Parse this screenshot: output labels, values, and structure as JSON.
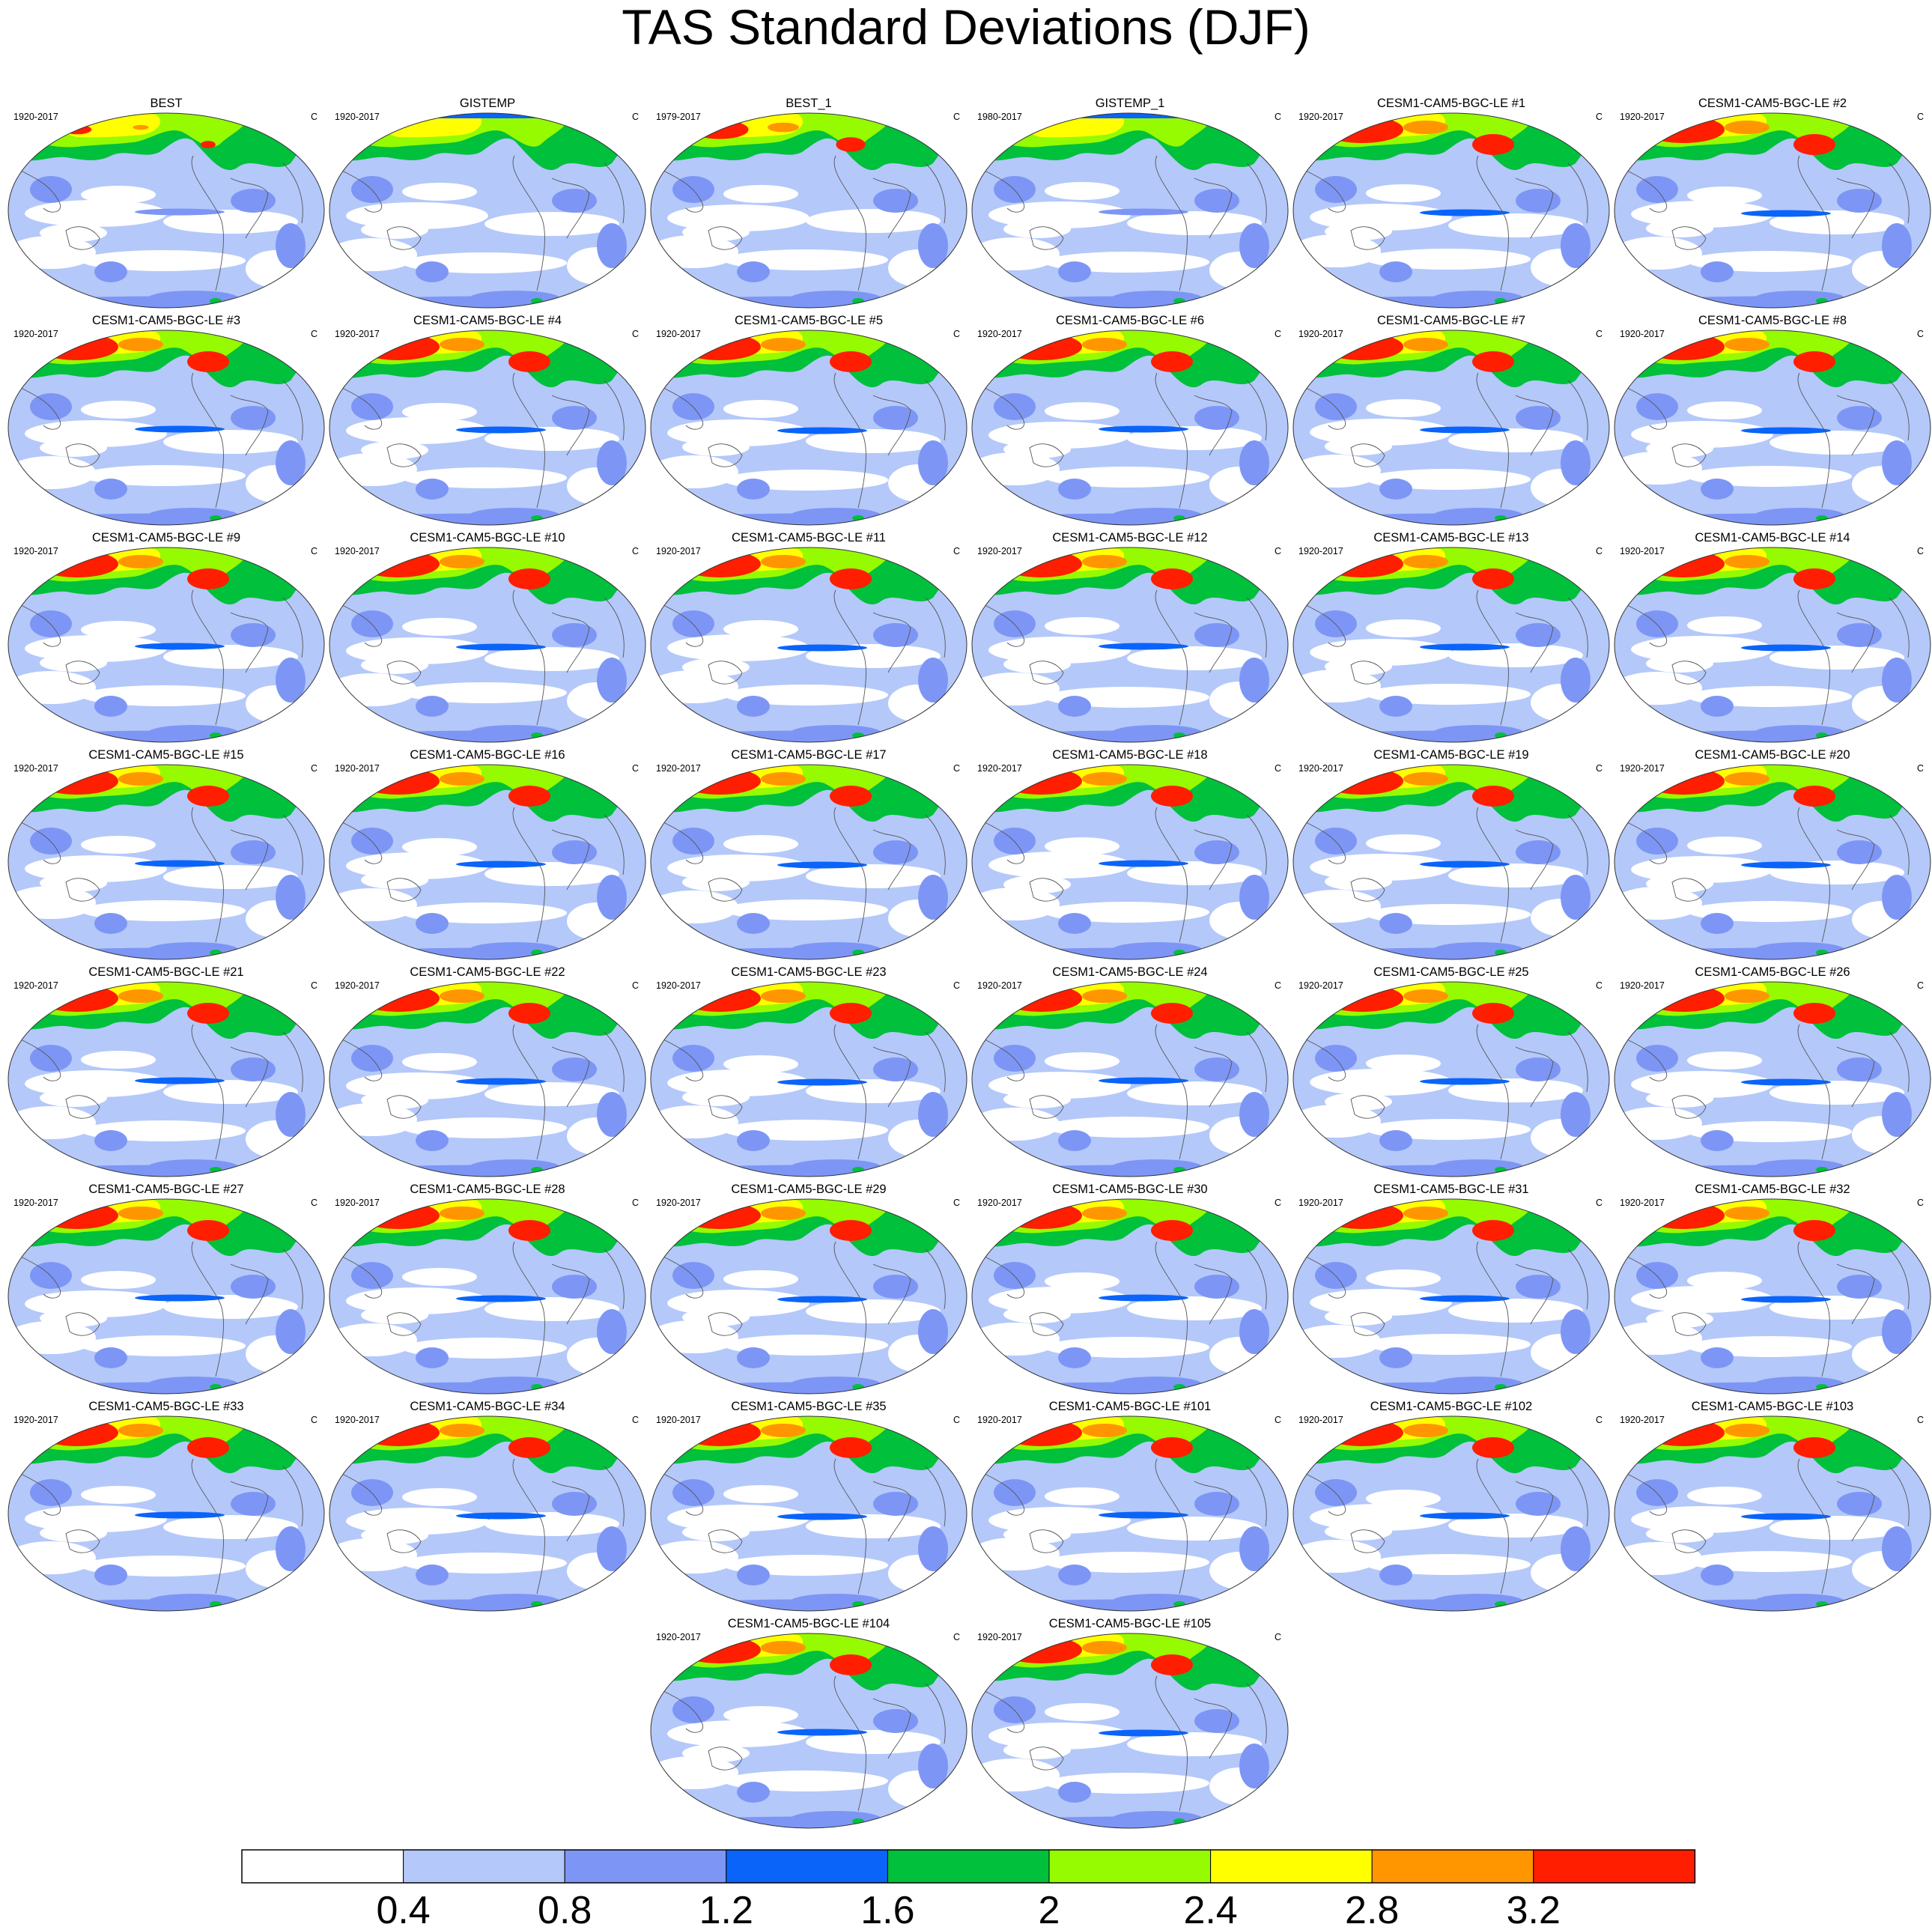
{
  "title": "TAS Standard Deviations (DJF)",
  "chart_data": {
    "type": "heatmap",
    "title": "TAS Standard Deviations (DJF)",
    "variable": "TAS",
    "season": "DJF",
    "units": "C",
    "panels": [
      {
        "name": "BEST",
        "years": "1920-2017",
        "units": "C"
      },
      {
        "name": "GISTEMP",
        "years": "1920-2017",
        "units": "C"
      },
      {
        "name": "BEST_1",
        "years": "1979-2017",
        "units": "C"
      },
      {
        "name": "GISTEMP_1",
        "years": "1980-2017",
        "units": "C"
      },
      {
        "name": "CESM1-CAM5-BGC-LE #1",
        "years": "1920-2017",
        "units": "C"
      },
      {
        "name": "CESM1-CAM5-BGC-LE #2",
        "years": "1920-2017",
        "units": "C"
      },
      {
        "name": "CESM1-CAM5-BGC-LE #3",
        "years": "1920-2017",
        "units": "C"
      },
      {
        "name": "CESM1-CAM5-BGC-LE #4",
        "years": "1920-2017",
        "units": "C"
      },
      {
        "name": "CESM1-CAM5-BGC-LE #5",
        "years": "1920-2017",
        "units": "C"
      },
      {
        "name": "CESM1-CAM5-BGC-LE #6",
        "years": "1920-2017",
        "units": "C"
      },
      {
        "name": "CESM1-CAM5-BGC-LE #7",
        "years": "1920-2017",
        "units": "C"
      },
      {
        "name": "CESM1-CAM5-BGC-LE #8",
        "years": "1920-2017",
        "units": "C"
      },
      {
        "name": "CESM1-CAM5-BGC-LE #9",
        "years": "1920-2017",
        "units": "C"
      },
      {
        "name": "CESM1-CAM5-BGC-LE #10",
        "years": "1920-2017",
        "units": "C"
      },
      {
        "name": "CESM1-CAM5-BGC-LE #11",
        "years": "1920-2017",
        "units": "C"
      },
      {
        "name": "CESM1-CAM5-BGC-LE #12",
        "years": "1920-2017",
        "units": "C"
      },
      {
        "name": "CESM1-CAM5-BGC-LE #13",
        "years": "1920-2017",
        "units": "C"
      },
      {
        "name": "CESM1-CAM5-BGC-LE #14",
        "years": "1920-2017",
        "units": "C"
      },
      {
        "name": "CESM1-CAM5-BGC-LE #15",
        "years": "1920-2017",
        "units": "C"
      },
      {
        "name": "CESM1-CAM5-BGC-LE #16",
        "years": "1920-2017",
        "units": "C"
      },
      {
        "name": "CESM1-CAM5-BGC-LE #17",
        "years": "1920-2017",
        "units": "C"
      },
      {
        "name": "CESM1-CAM5-BGC-LE #18",
        "years": "1920-2017",
        "units": "C"
      },
      {
        "name": "CESM1-CAM5-BGC-LE #19",
        "years": "1920-2017",
        "units": "C"
      },
      {
        "name": "CESM1-CAM5-BGC-LE #20",
        "years": "1920-2017",
        "units": "C"
      },
      {
        "name": "CESM1-CAM5-BGC-LE #21",
        "years": "1920-2017",
        "units": "C"
      },
      {
        "name": "CESM1-CAM5-BGC-LE #22",
        "years": "1920-2017",
        "units": "C"
      },
      {
        "name": "CESM1-CAM5-BGC-LE #23",
        "years": "1920-2017",
        "units": "C"
      },
      {
        "name": "CESM1-CAM5-BGC-LE #24",
        "years": "1920-2017",
        "units": "C"
      },
      {
        "name": "CESM1-CAM5-BGC-LE #25",
        "years": "1920-2017",
        "units": "C"
      },
      {
        "name": "CESM1-CAM5-BGC-LE #26",
        "years": "1920-2017",
        "units": "C"
      },
      {
        "name": "CESM1-CAM5-BGC-LE #27",
        "years": "1920-2017",
        "units": "C"
      },
      {
        "name": "CESM1-CAM5-BGC-LE #28",
        "years": "1920-2017",
        "units": "C"
      },
      {
        "name": "CESM1-CAM5-BGC-LE #29",
        "years": "1920-2017",
        "units": "C"
      },
      {
        "name": "CESM1-CAM5-BGC-LE #30",
        "years": "1920-2017",
        "units": "C"
      },
      {
        "name": "CESM1-CAM5-BGC-LE #31",
        "years": "1920-2017",
        "units": "C"
      },
      {
        "name": "CESM1-CAM5-BGC-LE #32",
        "years": "1920-2017",
        "units": "C"
      },
      {
        "name": "CESM1-CAM5-BGC-LE #33",
        "years": "1920-2017",
        "units": "C"
      },
      {
        "name": "CESM1-CAM5-BGC-LE #34",
        "years": "1920-2017",
        "units": "C"
      },
      {
        "name": "CESM1-CAM5-BGC-LE #35",
        "years": "1920-2017",
        "units": "C"
      },
      {
        "name": "CESM1-CAM5-BGC-LE #101",
        "years": "1920-2017",
        "units": "C"
      },
      {
        "name": "CESM1-CAM5-BGC-LE #102",
        "years": "1920-2017",
        "units": "C"
      },
      {
        "name": "CESM1-CAM5-BGC-LE #103",
        "years": "1920-2017",
        "units": "C"
      },
      {
        "name": "CESM1-CAM5-BGC-LE #104",
        "years": "1920-2017",
        "units": "C"
      },
      {
        "name": "CESM1-CAM5-BGC-LE #105",
        "years": "1920-2017",
        "units": "C"
      }
    ],
    "colorbar": {
      "levels": [
        0.4,
        0.8,
        1.2,
        1.6,
        2,
        2.4,
        2.8,
        3.2
      ],
      "labels": [
        "0.4",
        "0.8",
        "1.2",
        "1.6",
        "2",
        "2.4",
        "2.8",
        "3.2"
      ],
      "colors": [
        "#ffffff",
        "#b4c8fa",
        "#7d96f5",
        "#0a64fa",
        "#00c03c",
        "#96fa00",
        "#ffff00",
        "#ff9600",
        "#ff1e00"
      ]
    }
  },
  "colors": {
    "ocean_low": "#b4c8fa",
    "ocean_mid": "#7d96f5",
    "band_blue": "#0a64fa",
    "land_green": "#00c03c",
    "land_lime": "#96fa00",
    "land_yellow": "#ffff00",
    "land_orange": "#ff9600",
    "land_red": "#ff1e00"
  }
}
